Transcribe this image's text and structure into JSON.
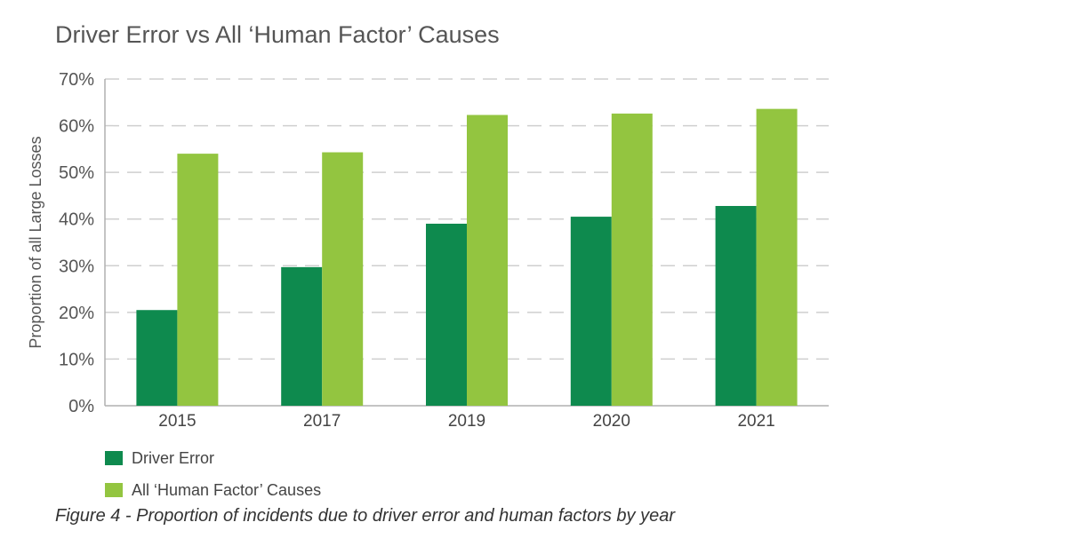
{
  "chart_data": {
    "type": "bar",
    "title": "Driver Error vs All ‘Human Factor’ Causes",
    "xlabel": "",
    "ylabel": "Proportion of all Large Losses",
    "categories": [
      "2015",
      "2017",
      "2019",
      "2020",
      "2021"
    ],
    "series": [
      {
        "name": "Driver Error",
        "color": "#0e8a4e",
        "values": [
          20.5,
          29.7,
          39.0,
          40.5,
          42.8
        ]
      },
      {
        "name": "All ‘Human Factor’ Causes",
        "color": "#93c540",
        "values": [
          54.0,
          54.3,
          62.3,
          62.6,
          63.6
        ]
      }
    ],
    "ylim": [
      0,
      70
    ],
    "yticks": [
      0,
      10,
      20,
      30,
      40,
      50,
      60,
      70
    ],
    "ytick_labels": [
      "0%",
      "10%",
      "20%",
      "30%",
      "40%",
      "50%",
      "60%",
      "70%"
    ],
    "grid": true,
    "legend_position": "bottom-left"
  },
  "caption": "Figure 4 - Proportion of incidents due to driver error and human factors by year"
}
